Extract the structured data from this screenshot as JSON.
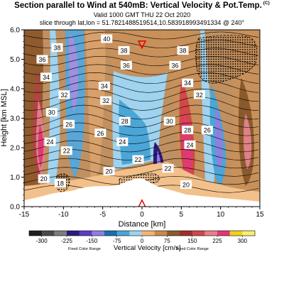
{
  "title": {
    "main": "Section parallel to Wind at 540mB: Vertical Velocity & Pot.Temp.",
    "copyright": "(C)",
    "valid": "Valid 1000 GMT THU 22 Oct 2020",
    "slice": "slice through lat,lon = 51.7821488519514,10.583918993491334 @ 240°"
  },
  "chart_data": {
    "type": "heatmap",
    "xlabel": "Distance [km]",
    "ylabel": "Height [km MSL]",
    "xlim": [
      -15,
      15
    ],
    "ylim": [
      0.0,
      6.0
    ],
    "xticks": [
      "-15",
      "-10",
      "-5",
      "0",
      "5",
      "10",
      "15"
    ],
    "yticks": [
      "0.0",
      "1.0",
      "2.0",
      "3.0",
      "4.0",
      "5.0",
      "6.0"
    ],
    "theta_contour_labels": [
      {
        "x": -12.7,
        "y": 5.0,
        "label": "36"
      },
      {
        "x": -10.8,
        "y": 5.4,
        "label": "38"
      },
      {
        "x": -12.2,
        "y": 4.4,
        "label": "34"
      },
      {
        "x": -9.9,
        "y": 3.8,
        "label": "32"
      },
      {
        "x": -11.5,
        "y": 3.2,
        "label": "30"
      },
      {
        "x": -9.3,
        "y": 2.8,
        "label": "26"
      },
      {
        "x": -11.7,
        "y": 2.2,
        "label": "24"
      },
      {
        "x": -9.6,
        "y": 1.9,
        "label": "22"
      },
      {
        "x": -12.5,
        "y": 0.95,
        "label": "20"
      },
      {
        "x": -10.4,
        "y": 0.8,
        "label": "18"
      },
      {
        "x": -4.5,
        "y": 5.7,
        "label": "40"
      },
      {
        "x": -2.3,
        "y": 5.3,
        "label": "38"
      },
      {
        "x": -2.0,
        "y": 4.8,
        "label": "36"
      },
      {
        "x": -4.8,
        "y": 4.1,
        "label": "34"
      },
      {
        "x": -4.6,
        "y": 3.6,
        "label": "32"
      },
      {
        "x": -5.3,
        "y": 2.5,
        "label": "26"
      },
      {
        "x": -2.2,
        "y": 2.9,
        "label": "28"
      },
      {
        "x": -2.5,
        "y": 2.2,
        "label": "24"
      },
      {
        "x": -0.5,
        "y": 1.6,
        "label": "22"
      },
      {
        "x": -4.2,
        "y": 1.2,
        "label": "20"
      },
      {
        "x": 5.2,
        "y": 5.3,
        "label": "38"
      },
      {
        "x": 4.2,
        "y": 4.8,
        "label": "36"
      },
      {
        "x": 5.8,
        "y": 4.2,
        "label": "34"
      },
      {
        "x": 7.3,
        "y": 3.8,
        "label": "32"
      },
      {
        "x": 3.5,
        "y": 2.9,
        "label": "30"
      },
      {
        "x": 5.8,
        "y": 2.6,
        "label": "28"
      },
      {
        "x": 8.3,
        "y": 2.6,
        "label": "26"
      },
      {
        "x": 6.1,
        "y": 2.1,
        "label": "24"
      },
      {
        "x": 3.3,
        "y": 1.3,
        "label": "22"
      },
      {
        "x": 5.6,
        "y": 0.75,
        "label": "20"
      }
    ],
    "colorbar": {
      "title": "Vertical Velocity [cm/s]",
      "note_left": "Fixed Color Range",
      "note_right": "Fixed Color Range",
      "tick_labels": [
        "-300",
        "-225",
        "-150",
        "-75",
        "0",
        "75",
        "150",
        "225",
        "300"
      ],
      "min": -337.5,
      "max": 337.5,
      "step": 37.5,
      "colors": [
        "#1e1e1e",
        "#4a4a4a",
        "#7d7d7d",
        "#2d1b7a",
        "#5b3ec4",
        "#8f7fe0",
        "#1a6fae",
        "#4aa6d6",
        "#9fd3ef",
        "#f2b476",
        "#c98a4a",
        "#8a5a2c",
        "#a0302c",
        "#d04848",
        "#e88088",
        "#e03a74",
        "#f0d020",
        "#f4f070"
      ]
    },
    "markers": [
      {
        "type": "triangle-down",
        "x": 0.0,
        "y": 5.5,
        "color": "#e60000"
      },
      {
        "type": "triangle-up",
        "x": 0.0,
        "y": 0.1,
        "color": "#e60000"
      }
    ]
  }
}
